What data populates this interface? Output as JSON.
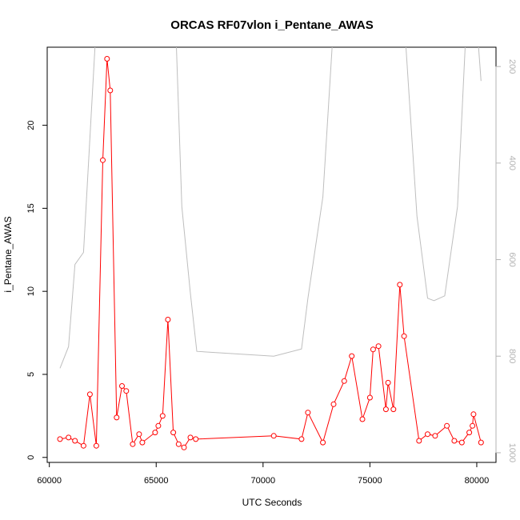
{
  "chart_data": {
    "type": "line",
    "title": "ORCAS RF07vlon i_Pentane_AWAS",
    "xlabel": "UTC Seconds",
    "ylabel": "i_Pentane_AWAS",
    "xlim": [
      59900,
      80900
    ],
    "ylim": [
      -0.3,
      24.7
    ],
    "x_ticks": [
      60000,
      65000,
      70000,
      75000,
      80000
    ],
    "y_ticks": [
      0,
      5,
      10,
      15,
      20
    ],
    "colors": {
      "series": "#ff0000",
      "secondary": "#bebebe"
    },
    "series": [
      {
        "marker": "open-circle",
        "x": [
          60500,
          60900,
          61200,
          61600,
          61900,
          62200,
          62500,
          62700,
          62850,
          63150,
          63400,
          63600,
          63900,
          64200,
          64350,
          64950,
          65100,
          65300,
          65550,
          65800,
          66050,
          66300,
          66600,
          66850,
          70500,
          71800,
          72100,
          72800,
          73300,
          73800,
          74150,
          74650,
          75000,
          75150,
          75400,
          75750,
          75850,
          76100,
          76400,
          76600,
          77300,
          77700,
          78050,
          78600,
          78950,
          79300,
          79650,
          79800,
          79850,
          80200
        ],
        "y": [
          1.1,
          1.2,
          1.0,
          0.7,
          3.8,
          0.7,
          17.9,
          24.0,
          22.1,
          2.4,
          4.3,
          4.0,
          0.8,
          1.4,
          0.9,
          1.5,
          1.9,
          2.5,
          8.3,
          1.5,
          0.8,
          0.6,
          1.2,
          1.1,
          1.3,
          1.1,
          2.7,
          0.9,
          3.2,
          4.6,
          6.1,
          2.3,
          3.6,
          6.5,
          6.7,
          2.9,
          4.5,
          2.9,
          10.4,
          7.3,
          1.0,
          1.4,
          1.3,
          1.9,
          1.0,
          0.9,
          1.5,
          1.9,
          2.6,
          0.9
        ]
      }
    ],
    "secondary_axis": {
      "side": "right",
      "range": [
        1020,
        160
      ],
      "ticks": [
        200,
        400,
        600,
        800,
        1000
      ],
      "series": {
        "x": [
          60500,
          60900,
          61200,
          61600,
          62200,
          65900,
          66200,
          66600,
          66900,
          70500,
          71800,
          72100,
          72800,
          73300,
          76600,
          77200,
          77700,
          78000,
          78500,
          79100,
          79500,
          80000,
          80200
        ],
        "y": [
          825,
          780,
          610,
          585,
          110,
          100,
          490,
          670,
          790,
          800,
          785,
          680,
          470,
          110,
          100,
          510,
          680,
          685,
          675,
          490,
          120,
          110,
          230
        ]
      }
    }
  }
}
